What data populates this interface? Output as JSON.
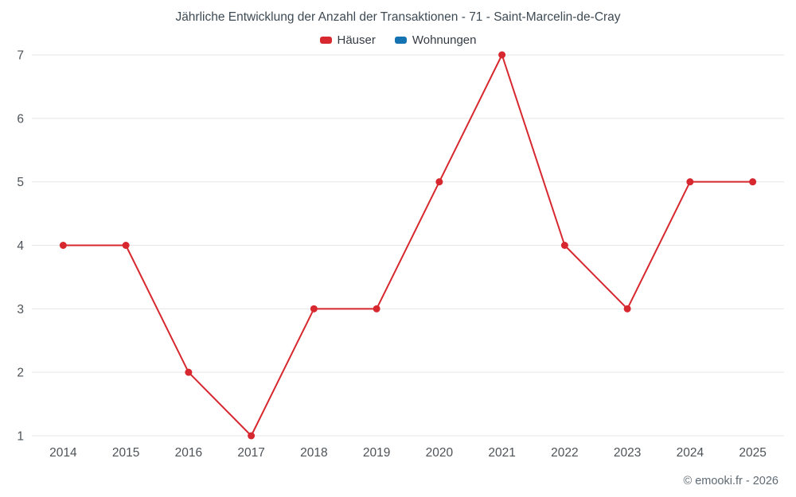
{
  "chart": {
    "title": "Jährliche Entwicklung der Anzahl der Transaktionen - 71 - Saint-Marcelin-de-Cray",
    "footer": "© emooki.fr - 2026"
  },
  "legend": {
    "items": [
      {
        "label": "Häuser",
        "color": "#d7282f"
      },
      {
        "label": "Wohnungen",
        "color": "#1673b1"
      }
    ]
  },
  "chart_data": {
    "type": "line",
    "title": "Jährliche Entwicklung der Anzahl der Transaktionen - 71 - Saint-Marcelin-de-Cray",
    "categories": [
      "2014",
      "2015",
      "2016",
      "2017",
      "2018",
      "2019",
      "2020",
      "2021",
      "2022",
      "2023",
      "2024",
      "2025"
    ],
    "series": [
      {
        "name": "Häuser",
        "color": "#d7282f",
        "values": [
          4,
          4,
          2,
          1,
          3,
          3,
          5,
          7,
          4,
          3,
          5,
          5
        ]
      },
      {
        "name": "Wohnungen",
        "color": "#1673b1",
        "values": []
      }
    ],
    "xlabel": "",
    "ylabel": "",
    "ylim": [
      1,
      7
    ],
    "yticks": [
      1,
      2,
      3,
      4,
      5,
      6,
      7
    ],
    "grid": true,
    "legend_position": "top",
    "grid_color": "#e6e6e6",
    "tick_color": "#4d5358"
  }
}
